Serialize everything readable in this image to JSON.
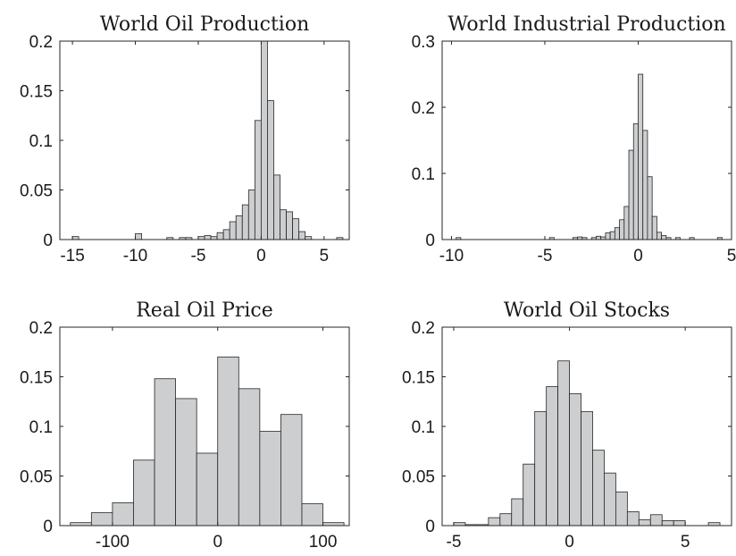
{
  "chart_data": [
    {
      "type": "bar",
      "subtype": "histogram",
      "title": "World Oil Production",
      "xlim": [
        -16,
        7
      ],
      "ylim": [
        0,
        0.2
      ],
      "xticks": [
        -15,
        -10,
        -5,
        0,
        5
      ],
      "xtick_labels": [
        "-15",
        "-10",
        "-5",
        "0",
        "5"
      ],
      "yticks": [
        0,
        0.05,
        0.1,
        0.15,
        0.2
      ],
      "ytick_labels": [
        "0",
        "0.05",
        "0.1",
        "0.15",
        "0.2"
      ],
      "bin_width": 0.5,
      "bins": [
        {
          "x": -14.75,
          "value": 0.003
        },
        {
          "x": -9.75,
          "value": 0.006
        },
        {
          "x": -7.25,
          "value": 0.002
        },
        {
          "x": -6.25,
          "value": 0.002
        },
        {
          "x": -5.75,
          "value": 0.002
        },
        {
          "x": -4.75,
          "value": 0.003
        },
        {
          "x": -4.25,
          "value": 0.004
        },
        {
          "x": -3.75,
          "value": 0.003
        },
        {
          "x": -3.25,
          "value": 0.007
        },
        {
          "x": -2.75,
          "value": 0.01
        },
        {
          "x": -2.25,
          "value": 0.018
        },
        {
          "x": -1.75,
          "value": 0.024
        },
        {
          "x": -1.25,
          "value": 0.035
        },
        {
          "x": -0.75,
          "value": 0.05
        },
        {
          "x": -0.25,
          "value": 0.12
        },
        {
          "x": 0.25,
          "value": 0.2
        },
        {
          "x": 0.75,
          "value": 0.14
        },
        {
          "x": 1.25,
          "value": 0.065
        },
        {
          "x": 1.75,
          "value": 0.03
        },
        {
          "x": 2.25,
          "value": 0.028
        },
        {
          "x": 2.75,
          "value": 0.021
        },
        {
          "x": 3.25,
          "value": 0.008
        },
        {
          "x": 3.75,
          "value": 0.003
        },
        {
          "x": 6.25,
          "value": 0.002
        }
      ]
    },
    {
      "type": "bar",
      "subtype": "histogram",
      "title": "World Industrial Production",
      "xlim": [
        -10.5,
        5
      ],
      "ylim": [
        0,
        0.3
      ],
      "xticks": [
        -10,
        -5,
        0,
        5
      ],
      "xtick_labels": [
        "-10",
        "-5",
        "0",
        "5"
      ],
      "yticks": [
        0,
        0.1,
        0.2,
        0.3
      ],
      "ytick_labels": [
        "0",
        "0.1",
        "0.2",
        "0.3"
      ],
      "bin_width": 0.25,
      "bins": [
        {
          "x": -9.625,
          "value": 0.003
        },
        {
          "x": -4.625,
          "value": 0.003
        },
        {
          "x": -3.375,
          "value": 0.003
        },
        {
          "x": -3.125,
          "value": 0.004
        },
        {
          "x": -2.875,
          "value": 0.003
        },
        {
          "x": -2.375,
          "value": 0.003
        },
        {
          "x": -2.125,
          "value": 0.005
        },
        {
          "x": -1.875,
          "value": 0.004
        },
        {
          "x": -1.625,
          "value": 0.01
        },
        {
          "x": -1.375,
          "value": 0.012
        },
        {
          "x": -1.125,
          "value": 0.018
        },
        {
          "x": -0.875,
          "value": 0.03
        },
        {
          "x": -0.625,
          "value": 0.05
        },
        {
          "x": -0.375,
          "value": 0.135
        },
        {
          "x": -0.125,
          "value": 0.175
        },
        {
          "x": 0.125,
          "value": 0.25
        },
        {
          "x": 0.375,
          "value": 0.165
        },
        {
          "x": 0.625,
          "value": 0.095
        },
        {
          "x": 0.875,
          "value": 0.035
        },
        {
          "x": 1.125,
          "value": 0.011
        },
        {
          "x": 1.375,
          "value": 0.006
        },
        {
          "x": 1.625,
          "value": 0.003
        },
        {
          "x": 2.125,
          "value": 0.003
        },
        {
          "x": 2.875,
          "value": 0.003
        },
        {
          "x": 4.375,
          "value": 0.003
        }
      ]
    },
    {
      "type": "bar",
      "subtype": "histogram",
      "title": "Real Oil Price",
      "xlim": [
        -150,
        125
      ],
      "ylim": [
        0,
        0.2
      ],
      "xticks": [
        -100,
        0,
        100
      ],
      "xtick_labels": [
        "-100",
        "0",
        "100"
      ],
      "yticks": [
        0,
        0.05,
        0.1,
        0.15,
        0.2
      ],
      "ytick_labels": [
        "0",
        "0.05",
        "0.1",
        "0.15",
        "0.2"
      ],
      "bin_width": 20,
      "bins": [
        {
          "x": -130,
          "value": 0.003
        },
        {
          "x": -110,
          "value": 0.013
        },
        {
          "x": -90,
          "value": 0.023
        },
        {
          "x": -70,
          "value": 0.066
        },
        {
          "x": -50,
          "value": 0.148
        },
        {
          "x": -30,
          "value": 0.128
        },
        {
          "x": -10,
          "value": 0.073
        },
        {
          "x": 10,
          "value": 0.17
        },
        {
          "x": 30,
          "value": 0.138
        },
        {
          "x": 50,
          "value": 0.095
        },
        {
          "x": 70,
          "value": 0.112
        },
        {
          "x": 90,
          "value": 0.022
        },
        {
          "x": 110,
          "value": 0.003
        }
      ]
    },
    {
      "type": "bar",
      "subtype": "histogram",
      "title": "World Oil Stocks",
      "xlim": [
        -5.5,
        7
      ],
      "ylim": [
        0,
        0.2
      ],
      "xticks": [
        -5,
        0,
        5
      ],
      "xtick_labels": [
        "-5",
        "0",
        "5"
      ],
      "yticks": [
        0,
        0.05,
        0.1,
        0.15,
        0.2
      ],
      "ytick_labels": [
        "0",
        "0.05",
        "0.1",
        "0.15",
        "0.2"
      ],
      "bin_width": 0.5,
      "bins": [
        {
          "x": -4.75,
          "value": 0.003
        },
        {
          "x": -4.25,
          "value": 0.001
        },
        {
          "x": -3.75,
          "value": 0.001
        },
        {
          "x": -3.25,
          "value": 0.008
        },
        {
          "x": -2.75,
          "value": 0.012
        },
        {
          "x": -2.25,
          "value": 0.027
        },
        {
          "x": -1.75,
          "value": 0.062
        },
        {
          "x": -1.25,
          "value": 0.115
        },
        {
          "x": -0.75,
          "value": 0.14
        },
        {
          "x": -0.25,
          "value": 0.166
        },
        {
          "x": 0.25,
          "value": 0.133
        },
        {
          "x": 0.75,
          "value": 0.115
        },
        {
          "x": 1.25,
          "value": 0.076
        },
        {
          "x": 1.75,
          "value": 0.053
        },
        {
          "x": 2.25,
          "value": 0.034
        },
        {
          "x": 2.75,
          "value": 0.014
        },
        {
          "x": 3.25,
          "value": 0.006
        },
        {
          "x": 3.75,
          "value": 0.011
        },
        {
          "x": 4.25,
          "value": 0.005
        },
        {
          "x": 4.75,
          "value": 0.005
        },
        {
          "x": 6.25,
          "value": 0.003
        }
      ]
    }
  ]
}
